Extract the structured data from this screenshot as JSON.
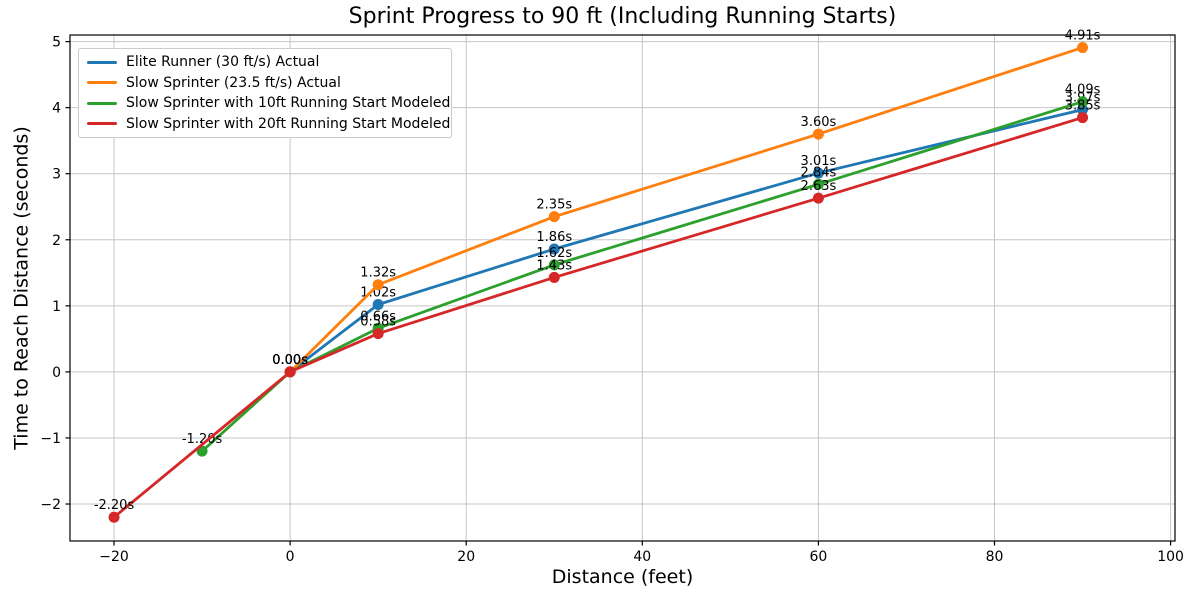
{
  "chart_data": {
    "type": "line",
    "title": "Sprint Progress to 90 ft (Including Running Starts)",
    "xlabel": "Distance (feet)",
    "ylabel": "Time to Reach Distance (seconds)",
    "xlim": [
      -25,
      100.5
    ],
    "ylim": [
      -2.56,
      5.1
    ],
    "xticks": [
      -20,
      0,
      20,
      40,
      60,
      80,
      100
    ],
    "yticks": [
      -2,
      -1,
      0,
      1,
      2,
      3,
      4,
      5
    ],
    "grid": true,
    "legend_position": "upper left",
    "marker": "circle",
    "colors": {
      "grid": "#c6c6c6",
      "spine": "#000000",
      "annotation": "#000000"
    },
    "series": [
      {
        "name": "Elite Runner (30 ft/s) Actual",
        "color": "#1f77b4",
        "x": [
          0,
          10,
          30,
          60,
          90
        ],
        "y": [
          0.0,
          1.02,
          1.86,
          3.01,
          3.97
        ],
        "point_labels": [
          "0.00s",
          "1.02s",
          "1.86s",
          "3.01s",
          "3.97s"
        ]
      },
      {
        "name": "Slow Sprinter (23.5 ft/s) Actual",
        "color": "#ff7f0e",
        "x": [
          0,
          10,
          30,
          60,
          90
        ],
        "y": [
          0.0,
          1.32,
          2.35,
          3.6,
          4.91
        ],
        "point_labels": [
          "0.00s",
          "1.32s",
          "2.35s",
          "3.60s",
          "4.91s"
        ]
      },
      {
        "name": "Slow Sprinter with 10ft Running Start Modeled",
        "color": "#2ca02c",
        "x": [
          -10,
          0,
          10,
          30,
          60,
          90
        ],
        "y": [
          -1.2,
          0.0,
          0.66,
          1.62,
          2.84,
          4.09
        ],
        "point_labels": [
          "-1.20s",
          "0.00s",
          "0.66s",
          "1.62s",
          "2.84s",
          "4.09s"
        ]
      },
      {
        "name": "Slow Sprinter with 20ft Running Start Modeled",
        "color": "#d62728",
        "x": [
          -20,
          0,
          10,
          30,
          60,
          90
        ],
        "y": [
          -2.2,
          0.0,
          0.58,
          1.43,
          2.63,
          3.85
        ],
        "point_labels": [
          "-2.20s",
          "0.00s",
          "0.58s",
          "1.43s",
          "2.63s",
          "3.85s"
        ]
      }
    ]
  }
}
